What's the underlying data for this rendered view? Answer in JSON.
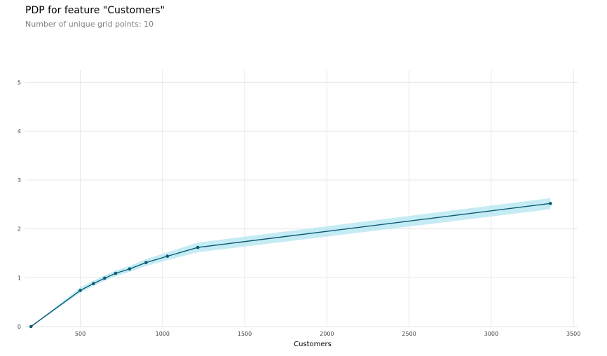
{
  "title": "PDP for feature \"Customers\"",
  "subtitle": "Number of unique grid points: 10",
  "colors": {
    "line": "#0c5a70",
    "band": "#b2e6f2",
    "marker": "#0c5a70",
    "grid": "#e6e6e6"
  },
  "chart_data": {
    "type": "line",
    "title": "PDP for feature \"Customers\"",
    "xlabel": "Customers",
    "ylabel": "",
    "xlim": [
      165,
      3525
    ],
    "ylim": [
      0,
      5.25
    ],
    "xticks": [
      500,
      1000,
      1500,
      2000,
      2500,
      3000,
      3500
    ],
    "xtick_labels": [
      "500",
      "1000",
      "1500",
      "2000",
      "2500",
      "3000",
      "3500"
    ],
    "yticks": [
      0,
      1,
      2,
      3,
      4,
      5
    ],
    "ytick_labels": [
      "0",
      "1",
      "2",
      "3",
      "4",
      "5"
    ],
    "grid": true,
    "series": [
      {
        "x": [
          200,
          500,
          580,
          648,
          715,
          800,
          900,
          1030,
          1215,
          3360
        ],
        "y": [
          0,
          0.74,
          0.88,
          0.99,
          1.09,
          1.18,
          1.31,
          1.44,
          1.62,
          2.52
        ],
        "lower": [
          0,
          0.69,
          0.83,
          0.94,
          1.03,
          1.12,
          1.24,
          1.36,
          1.52,
          2.4
        ],
        "upper": [
          0,
          0.8,
          0.94,
          1.05,
          1.15,
          1.24,
          1.38,
          1.52,
          1.72,
          2.63
        ]
      }
    ]
  }
}
